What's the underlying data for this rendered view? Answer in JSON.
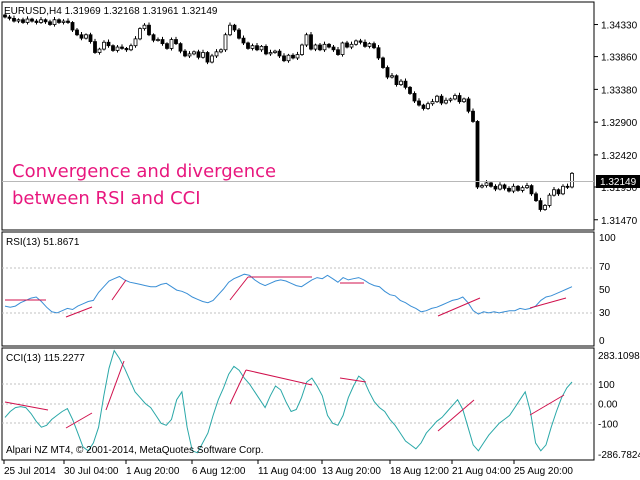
{
  "colors": {
    "background": "#ffffff",
    "axis": "#000000",
    "grid": "#c0c0c0",
    "candle": "#000000",
    "rsi_line": "#3a8fd6",
    "cci_line": "#2aa8a8",
    "divergence_line": "#d0104c",
    "overlay_text": "#e8177e",
    "price_tag_bg": "#000000",
    "price_tag_fg": "#ffffff"
  },
  "main": {
    "title": "EURUSD,H4  1.31969 1.32168 1.31961 1.32149",
    "y_ticks": [
      "1.34330",
      "1.33860",
      "1.33380",
      "1.32900",
      "1.32420",
      "1.31950",
      "1.31470"
    ],
    "current_price": "1.32149",
    "overlay_lines": [
      "Convergence and divergence",
      "between RSI and CCI"
    ]
  },
  "rsi": {
    "title": "RSI(13) 51.8671",
    "y_ticks": [
      "100",
      "70",
      "50",
      "30",
      "0"
    ]
  },
  "cci": {
    "title": "CCI(13) 115.2277",
    "y_ticks": [
      "283.1098",
      "100",
      "0.00",
      "-100",
      "-286.7824"
    ]
  },
  "copyright": "Alpari NZ MT4, © 2001-2014, MetaQuotes Software Corp.",
  "x_ticks": [
    "25 Jul 2014",
    "30 Jul 04:00",
    "1 Aug 20:00",
    "6 Aug 12:00",
    "11 Aug 04:00",
    "13 Aug 20:00",
    "18 Aug 12:00",
    "21 Aug 04:00",
    "25 Aug 20:00"
  ],
  "chart_data": [
    {
      "type": "candlestick",
      "title": "EURUSD,H4  1.31969 1.32168 1.31961 1.32149",
      "x_ticks": [
        "25 Jul 2014",
        "30 Jul 04:00",
        "1 Aug 20:00",
        "6 Aug 12:00",
        "11 Aug 04:00",
        "13 Aug 20:00",
        "18 Aug 12:00",
        "21 Aug 04:00",
        "25 Aug 20:00"
      ],
      "ylim": [
        1.3132,
        1.3466
      ],
      "close": [
        1.3444,
        1.3442,
        1.3438,
        1.344,
        1.3436,
        1.3441,
        1.3438,
        1.3436,
        1.344,
        1.3437,
        1.3433,
        1.344,
        1.3436,
        1.3438,
        1.3436,
        1.3425,
        1.3418,
        1.3413,
        1.3418,
        1.3408,
        1.3392,
        1.3397,
        1.3407,
        1.3402,
        1.3395,
        1.34,
        1.3398,
        1.3396,
        1.3402,
        1.3412,
        1.3427,
        1.3432,
        1.3418,
        1.341,
        1.3411,
        1.3405,
        1.3398,
        1.3411,
        1.3405,
        1.3394,
        1.3387,
        1.339,
        1.3393,
        1.3385,
        1.3392,
        1.3378,
        1.3387,
        1.3393,
        1.3396,
        1.3418,
        1.3432,
        1.3425,
        1.3413,
        1.3406,
        1.3398,
        1.3402,
        1.3396,
        1.3401,
        1.339,
        1.3392,
        1.3394,
        1.3387,
        1.338,
        1.3388,
        1.3384,
        1.3389,
        1.3403,
        1.3418,
        1.3397,
        1.3403,
        1.3396,
        1.3404,
        1.34,
        1.3396,
        1.3389,
        1.3406,
        1.34,
        1.3404,
        1.3409,
        1.3407,
        1.3401,
        1.3405,
        1.3399,
        1.3384,
        1.337,
        1.3356,
        1.3358,
        1.3345,
        1.335,
        1.3341,
        1.3332,
        1.3321,
        1.3315,
        1.331,
        1.3317,
        1.332,
        1.3328,
        1.3318,
        1.3322,
        1.3324,
        1.3329,
        1.332,
        1.3324,
        1.3306,
        1.3291,
        1.3195,
        1.3197,
        1.3201,
        1.3196,
        1.3192,
        1.3198,
        1.3193,
        1.3189,
        1.3196,
        1.319,
        1.3194,
        1.3197,
        1.3185,
        1.3175,
        1.3162,
        1.3168,
        1.3183,
        1.3191,
        1.3185,
        1.3196,
        1.3195,
        1.3215
      ]
    },
    {
      "type": "line",
      "title": "RSI(13) 51.8671",
      "ylim": [
        0,
        100
      ],
      "y_ticks": [
        100,
        70,
        50,
        30,
        0
      ],
      "values": [
        35,
        34,
        35,
        38,
        40,
        42,
        43,
        39,
        34,
        30,
        29,
        31,
        33,
        32,
        35,
        37,
        39,
        40,
        47,
        52,
        57,
        59,
        61,
        58,
        56,
        55,
        54,
        53,
        52,
        52,
        54,
        55,
        52,
        49,
        48,
        46,
        43,
        41,
        39,
        38,
        40,
        45,
        50,
        56,
        59,
        61,
        63,
        62,
        58,
        55,
        53,
        55,
        57,
        58,
        57,
        55,
        53,
        52,
        55,
        58,
        60,
        59,
        62,
        59,
        56,
        60,
        58,
        59,
        60,
        58,
        55,
        53,
        52,
        48,
        45,
        44,
        40,
        38,
        35,
        33,
        30,
        31,
        33,
        34,
        36,
        38,
        40,
        41,
        43,
        38,
        31,
        28,
        30,
        29,
        30,
        29,
        30,
        31,
        31,
        33,
        32,
        33,
        35,
        40,
        43,
        44,
        46,
        48,
        50,
        52
      ]
    },
    {
      "type": "line",
      "title": "CCI(13) 115.2277",
      "ylim": [
        -286.7824,
        283.1098
      ],
      "y_ticks": [
        283.1098,
        100,
        0,
        -100,
        -286.7824
      ],
      "values": [
        -70,
        -40,
        -20,
        -15,
        -20,
        -50,
        -90,
        -120,
        -110,
        -80,
        -60,
        -40,
        -25,
        -80,
        -150,
        -220,
        -240,
        -200,
        -120,
        40,
        180,
        270,
        230,
        180,
        120,
        60,
        30,
        0,
        -20,
        -60,
        -100,
        -110,
        -80,
        20,
        60,
        -120,
        -240,
        -250,
        -200,
        -150,
        -60,
        20,
        80,
        150,
        190,
        170,
        130,
        100,
        60,
        20,
        -20,
        40,
        90,
        70,
        10,
        -40,
        -30,
        30,
        110,
        130,
        90,
        40,
        -60,
        -100,
        -110,
        -60,
        30,
        90,
        140,
        120,
        60,
        10,
        -20,
        -40,
        -80,
        -110,
        -150,
        -190,
        -210,
        -230,
        -200,
        -150,
        -120,
        -90,
        -70,
        -40,
        -10,
        20,
        -30,
        -120,
        -210,
        -240,
        -200,
        -160,
        -130,
        -100,
        -80,
        -60,
        -20,
        20,
        60,
        -40,
        -200,
        -240,
        -210,
        -120,
        -40,
        30,
        80,
        110
      ]
    }
  ]
}
